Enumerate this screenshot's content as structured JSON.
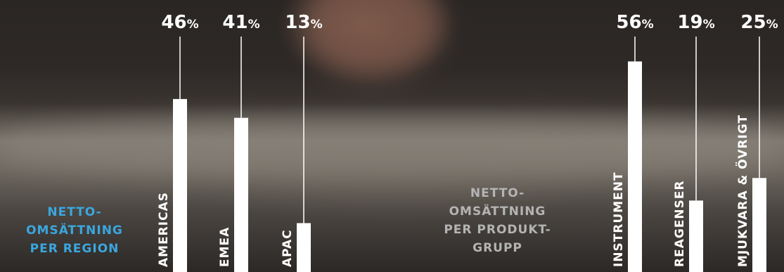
{
  "colors": {
    "bar": "#ffffff",
    "leader_line": "#ffffff",
    "region_label": "#3aa7de",
    "product_label": "#b4b4b4"
  },
  "labels": {
    "region": "NETTO-\nOMSÄTTNING\nPER REGION",
    "product": "NETTO-\nOMSÄTTNING\nPER PRODUKT-\nGRUPP"
  },
  "chart_data": [
    {
      "type": "bar",
      "title": "NETTO-OMSÄTTNING PER REGION",
      "unit": "%",
      "categories": [
        "AMERICAS",
        "EMEA",
        "APAC"
      ],
      "values": [
        46,
        41,
        13
      ],
      "value_labels": [
        "46",
        "41",
        "13"
      ]
    },
    {
      "type": "bar",
      "title": "NETTO-OMSÄTTNING PER PRODUKTGRUPP",
      "unit": "%",
      "categories": [
        "INSTRUMENT",
        "REAGENSER",
        "MJUKVARA & ÖVRIGT"
      ],
      "values": [
        56,
        19,
        25
      ],
      "value_labels": [
        "56",
        "19",
        "25"
      ]
    }
  ]
}
